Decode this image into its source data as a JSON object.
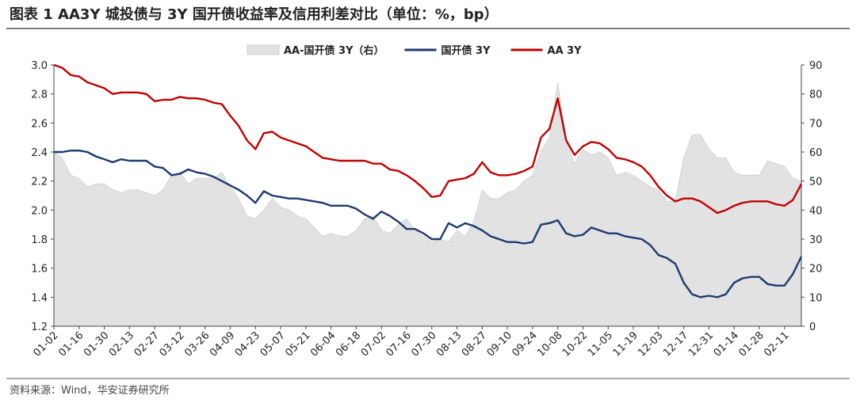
{
  "chart_data": {
    "type": "line",
    "title": "图表 1 AA3Y 城投债与 3Y 国开债收益率及信用利差对比（单位：%，bp）",
    "source": "资料来源：Wind，华安证券研究所",
    "categories": [
      "01-02",
      null,
      null,
      "01-16",
      null,
      null,
      "01-30",
      null,
      null,
      "02-13",
      null,
      null,
      "02-27",
      null,
      null,
      "03-12",
      null,
      null,
      "03-26",
      null,
      null,
      "04-09",
      null,
      null,
      "04-23",
      null,
      null,
      "05-07",
      null,
      null,
      "05-21",
      null,
      null,
      "06-04",
      null,
      null,
      "06-18",
      null,
      null,
      "07-02",
      null,
      null,
      "07-16",
      null,
      null,
      "07-30",
      null,
      null,
      "08-13",
      null,
      null,
      "08-27",
      null,
      null,
      "09-10",
      null,
      null,
      "09-24",
      null,
      null,
      "10-08",
      null,
      null,
      "10-22",
      null,
      null,
      "11-05",
      null,
      null,
      "11-19",
      null,
      null,
      "12-03",
      null,
      null,
      "12-17",
      null,
      null,
      "12-31",
      null,
      null,
      "01-14",
      null,
      null,
      "01-28",
      null,
      null,
      "02-11",
      null,
      null
    ],
    "series": [
      {
        "name": "AA-国开债 3Y（右）",
        "type": "area",
        "axis": "y2",
        "color": "#e2e2e2",
        "values": [
          60,
          58,
          52,
          51,
          48,
          49,
          49,
          47,
          46,
          47,
          47,
          46,
          45,
          47,
          52,
          53,
          49,
          51,
          51,
          51,
          53,
          48,
          44,
          38,
          37,
          40,
          44,
          41,
          40,
          38,
          37,
          34,
          31,
          32,
          31,
          31,
          33,
          37,
          38,
          33,
          32,
          35,
          37,
          33,
          31,
          29,
          30,
          29,
          33,
          31,
          36,
          47,
          44,
          44,
          46,
          47,
          50,
          52,
          60,
          65,
          84,
          64,
          56,
          61,
          59,
          60,
          58,
          52,
          53,
          52,
          50,
          48,
          47,
          43,
          43,
          58,
          66,
          66,
          61,
          58,
          58,
          53,
          52,
          52,
          52,
          57,
          56,
          55,
          51,
          50
        ]
      },
      {
        "name": "国开债 3Y",
        "type": "line",
        "color": "#1c3a70",
        "values": [
          2.4,
          2.4,
          2.41,
          2.41,
          2.4,
          2.37,
          2.35,
          2.33,
          2.35,
          2.34,
          2.34,
          2.34,
          2.3,
          2.29,
          2.24,
          2.25,
          2.28,
          2.26,
          2.25,
          2.23,
          2.2,
          2.17,
          2.14,
          2.1,
          2.05,
          2.13,
          2.1,
          2.09,
          2.08,
          2.08,
          2.07,
          2.06,
          2.05,
          2.03,
          2.03,
          2.03,
          2.01,
          1.97,
          1.94,
          1.99,
          1.96,
          1.92,
          1.87,
          1.87,
          1.84,
          1.8,
          1.8,
          1.91,
          1.88,
          1.91,
          1.89,
          1.86,
          1.82,
          1.8,
          1.78,
          1.78,
          1.77,
          1.78,
          1.9,
          1.91,
          1.93,
          1.84,
          1.82,
          1.83,
          1.88,
          1.86,
          1.84,
          1.84,
          1.82,
          1.81,
          1.8,
          1.76,
          1.69,
          1.67,
          1.63,
          1.5,
          1.42,
          1.4,
          1.41,
          1.4,
          1.42,
          1.5,
          1.53,
          1.54,
          1.54,
          1.49,
          1.48,
          1.48,
          1.56,
          1.68
        ]
      },
      {
        "name": "AA 3Y",
        "type": "line",
        "color": "#c00000",
        "values": [
          3.0,
          2.98,
          2.93,
          2.92,
          2.88,
          2.86,
          2.84,
          2.8,
          2.81,
          2.81,
          2.81,
          2.8,
          2.75,
          2.76,
          2.76,
          2.78,
          2.77,
          2.77,
          2.76,
          2.74,
          2.73,
          2.65,
          2.58,
          2.48,
          2.42,
          2.53,
          2.54,
          2.5,
          2.48,
          2.46,
          2.44,
          2.4,
          2.36,
          2.35,
          2.34,
          2.34,
          2.34,
          2.34,
          2.32,
          2.32,
          2.28,
          2.27,
          2.24,
          2.2,
          2.15,
          2.09,
          2.1,
          2.2,
          2.21,
          2.22,
          2.25,
          2.33,
          2.26,
          2.24,
          2.24,
          2.25,
          2.27,
          2.3,
          2.5,
          2.56,
          2.77,
          2.48,
          2.38,
          2.44,
          2.47,
          2.46,
          2.42,
          2.36,
          2.35,
          2.33,
          2.3,
          2.24,
          2.16,
          2.1,
          2.06,
          2.08,
          2.08,
          2.06,
          2.02,
          1.98,
          2.0,
          2.03,
          2.05,
          2.06,
          2.06,
          2.06,
          2.04,
          2.03,
          2.07,
          2.18
        ]
      }
    ],
    "ylim": [
      1.2,
      3.0
    ],
    "yticks": [
      1.2,
      1.4,
      1.6,
      1.8,
      {
        "value": 2,
        "label": "2.0"
      },
      2.2,
      2.4,
      2.6,
      2.8,
      {
        "value": 3,
        "label": "3.0"
      }
    ],
    "y2lim": [
      0,
      90
    ],
    "y2ticks": [
      0,
      10,
      20,
      30,
      40,
      50,
      60,
      70,
      80,
      90
    ],
    "legend": "top"
  }
}
